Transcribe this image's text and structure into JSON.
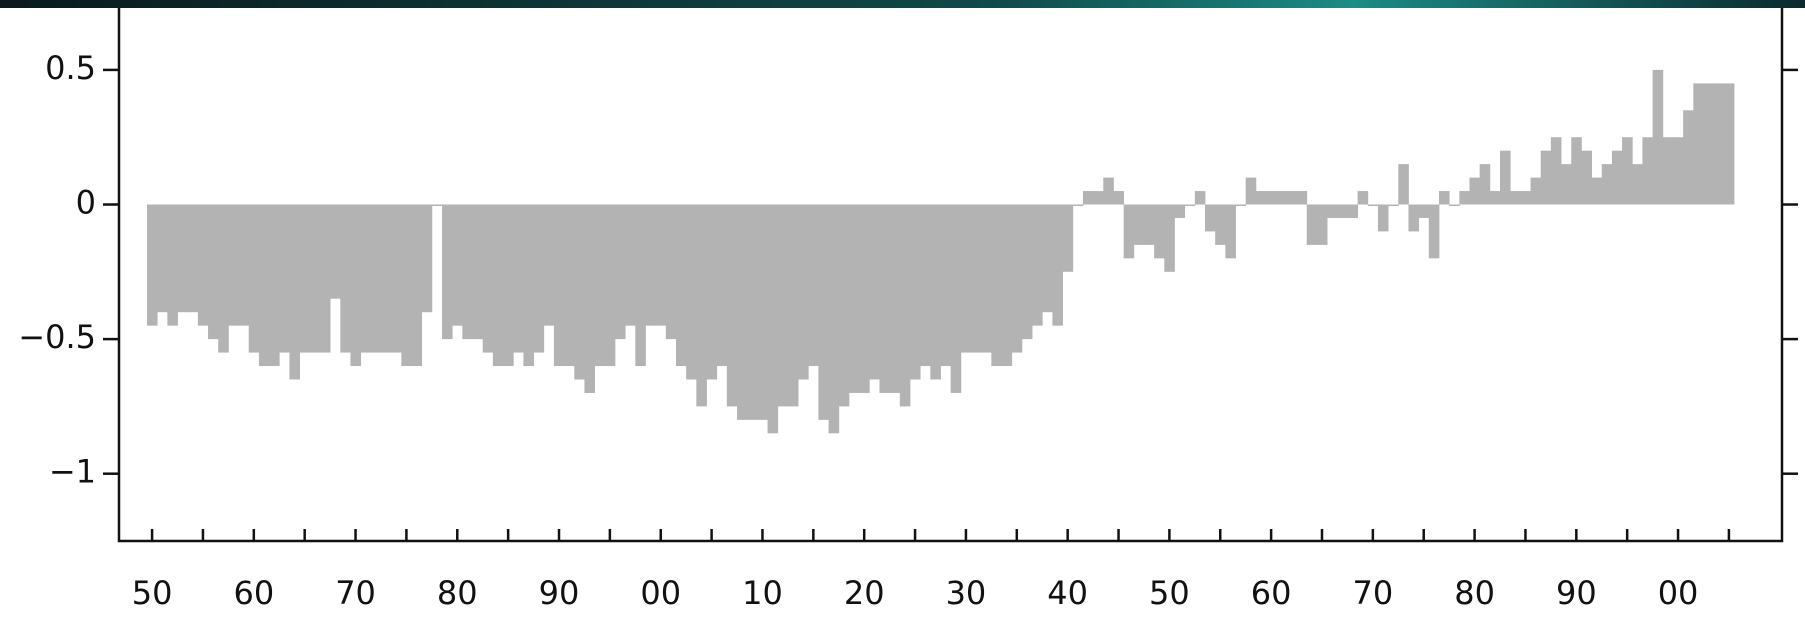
{
  "chart_data": {
    "type": "bar",
    "color": "#b3b3b3",
    "categories": [
      "50",
      null,
      null,
      null,
      null,
      null,
      null,
      null,
      null,
      null,
      "60",
      null,
      null,
      null,
      null,
      null,
      null,
      null,
      null,
      null,
      "70",
      null,
      null,
      null,
      null,
      null,
      null,
      null,
      null,
      null,
      "80",
      null,
      null,
      null,
      null,
      null,
      null,
      null,
      null,
      null,
      "90",
      null,
      null,
      null,
      null,
      null,
      null,
      null,
      null,
      null,
      "00",
      null,
      null,
      null,
      null,
      null,
      null,
      null,
      null,
      null,
      "10",
      null,
      null,
      null,
      null,
      null,
      null,
      null,
      null,
      null,
      "20",
      null,
      null,
      null,
      null,
      null,
      null,
      null,
      null,
      null,
      "30",
      null,
      null,
      null,
      null,
      null,
      null,
      null,
      null,
      null,
      "40",
      null,
      null,
      null,
      null,
      null,
      null,
      null,
      null,
      null,
      "50",
      null,
      null,
      null,
      null,
      null,
      null,
      null,
      null,
      null,
      "60",
      null,
      null,
      null,
      null,
      null,
      null,
      null,
      null,
      null,
      "70",
      null,
      null,
      null,
      null,
      null,
      null,
      null,
      null,
      null,
      "80",
      null,
      null,
      null,
      null,
      null,
      null,
      null,
      null,
      null,
      "90",
      null,
      null,
      null,
      null,
      null,
      null,
      null,
      null,
      null,
      "00",
      null,
      null,
      null,
      null,
      null
    ],
    "values": [
      -0.45,
      -0.4,
      -0.45,
      -0.4,
      -0.4,
      -0.45,
      -0.5,
      -0.55,
      -0.45,
      -0.45,
      -0.55,
      -0.6,
      -0.6,
      -0.55,
      -0.65,
      -0.55,
      -0.55,
      -0.55,
      -0.35,
      -0.55,
      -0.6,
      -0.55,
      -0.55,
      -0.55,
      -0.55,
      -0.6,
      -0.6,
      -0.4,
      0.0,
      -0.5,
      -0.45,
      -0.5,
      -0.5,
      -0.55,
      -0.6,
      -0.6,
      -0.55,
      -0.6,
      -0.55,
      -0.45,
      -0.6,
      -0.6,
      -0.65,
      -0.7,
      -0.6,
      -0.6,
      -0.5,
      -0.45,
      -0.6,
      -0.45,
      -0.45,
      -0.5,
      -0.6,
      -0.65,
      -0.75,
      -0.65,
      -0.6,
      -0.75,
      -0.8,
      -0.8,
      -0.8,
      -0.85,
      -0.75,
      -0.75,
      -0.65,
      -0.6,
      -0.8,
      -0.85,
      -0.75,
      -0.7,
      -0.7,
      -0.65,
      -0.7,
      -0.7,
      -0.75,
      -0.65,
      -0.6,
      -0.65,
      -0.6,
      -0.7,
      -0.55,
      -0.55,
      -0.55,
      -0.6,
      -0.6,
      -0.55,
      -0.5,
      -0.45,
      -0.4,
      -0.45,
      -0.25,
      0.0,
      0.05,
      0.05,
      0.1,
      0.05,
      -0.2,
      -0.15,
      -0.15,
      -0.2,
      -0.25,
      -0.05,
      0.0,
      0.05,
      -0.1,
      -0.15,
      -0.2,
      0.0,
      0.1,
      0.05,
      0.05,
      0.05,
      0.05,
      0.05,
      -0.15,
      -0.15,
      -0.05,
      -0.05,
      -0.05,
      0.05,
      0.0,
      -0.1,
      0.0,
      0.15,
      -0.1,
      -0.05,
      -0.2,
      0.05,
      0.0,
      0.05,
      0.1,
      0.15,
      0.05,
      0.2,
      0.05,
      0.05,
      0.1,
      0.2,
      0.25,
      0.15,
      0.25,
      0.2,
      0.1,
      0.15,
      0.2,
      0.25,
      0.15,
      0.25,
      0.5,
      0.25,
      0.25,
      0.35,
      0.45,
      0.45,
      0.45,
      0.45
    ],
    "ylim": [
      -1.25,
      0.73
    ],
    "yticks": [
      {
        "value": 0.5,
        "label": "0.5"
      },
      0,
      {
        "value": -0.5,
        "label": "−0.5"
      },
      {
        "value": -1,
        "label": "−1"
      }
    ]
  }
}
